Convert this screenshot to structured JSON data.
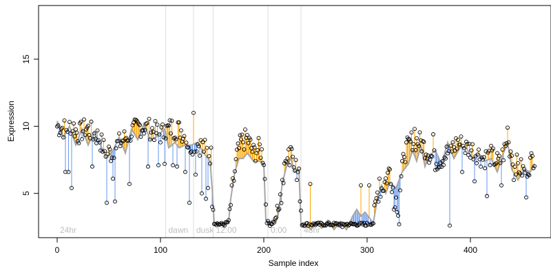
{
  "chart_data": {
    "type": "scatter",
    "title": "",
    "xlabel": "Sample index",
    "ylabel": "Expression",
    "xlim": [
      -18,
      478
    ],
    "ylim": [
      1.7,
      19.0
    ],
    "x_ticks": [
      0,
      100,
      200,
      300,
      400
    ],
    "y_ticks": [
      5,
      10,
      15
    ],
    "grid": false,
    "colors": {
      "observed_points": "#000000",
      "fitted_curve": "#a6a6a6",
      "residual_above": "#ffa500",
      "residual_below": "#6495ed",
      "segment_line": "#dcdcdc",
      "segment_label": "#bebebe",
      "axis": "#000000"
    },
    "segments": [
      {
        "label": "24hr",
        "x": 0
      },
      {
        "label": "dawn",
        "x": 105
      },
      {
        "label": "dusk",
        "x": 132
      },
      {
        "label": "12:00",
        "x": 151
      },
      {
        "label": "0:00",
        "x": 204
      },
      {
        "label": "48hr",
        "x": 236
      }
    ],
    "observed_anchors": [
      [
        0,
        10.0
      ],
      [
        8,
        9.8
      ],
      [
        14,
        10.2
      ],
      [
        20,
        9.4
      ],
      [
        28,
        9.9
      ],
      [
        34,
        9.5
      ],
      [
        40,
        9.2
      ],
      [
        46,
        8.2
      ],
      [
        52,
        8.0
      ],
      [
        58,
        8.6
      ],
      [
        64,
        9.0
      ],
      [
        72,
        9.6
      ],
      [
        80,
        10.0
      ],
      [
        90,
        9.8
      ],
      [
        100,
        9.4
      ],
      [
        110,
        9.9
      ],
      [
        120,
        9.7
      ],
      [
        128,
        8.6
      ],
      [
        134,
        8.8
      ],
      [
        140,
        8.5
      ],
      [
        146,
        8.1
      ],
      [
        149,
        7.8
      ],
      [
        152,
        2.8
      ],
      [
        157,
        2.7
      ],
      [
        162,
        2.7
      ],
      [
        166,
        2.9
      ],
      [
        170,
        5.5
      ],
      [
        174,
        7.8
      ],
      [
        178,
        8.8
      ],
      [
        184,
        9.1
      ],
      [
        190,
        8.0
      ],
      [
        196,
        8.4
      ],
      [
        200,
        7.6
      ],
      [
        203,
        2.9
      ],
      [
        206,
        2.7
      ],
      [
        210,
        2.9
      ],
      [
        214,
        3.6
      ],
      [
        218,
        5.2
      ],
      [
        222,
        8.0
      ],
      [
        226,
        8.6
      ],
      [
        230,
        7.4
      ],
      [
        234,
        6.2
      ],
      [
        237,
        2.7
      ],
      [
        245,
        2.7
      ],
      [
        260,
        2.7
      ],
      [
        280,
        2.7
      ],
      [
        300,
        2.7
      ],
      [
        306,
        2.8
      ],
      [
        310,
        5.0
      ],
      [
        316,
        5.6
      ],
      [
        322,
        6.8
      ],
      [
        326,
        5.0
      ],
      [
        330,
        4.0
      ],
      [
        336,
        8.0
      ],
      [
        344,
        9.0
      ],
      [
        352,
        8.8
      ],
      [
        360,
        8.0
      ],
      [
        366,
        7.4
      ],
      [
        372,
        7.6
      ],
      [
        380,
        8.2
      ],
      [
        388,
        8.8
      ],
      [
        396,
        8.4
      ],
      [
        404,
        8.2
      ],
      [
        412,
        7.6
      ],
      [
        420,
        7.8
      ],
      [
        428,
        7.2
      ],
      [
        436,
        8.8
      ],
      [
        444,
        7.2
      ],
      [
        452,
        6.6
      ],
      [
        456,
        7.0
      ],
      [
        462,
        7.8
      ]
    ],
    "fitted_anchors": [
      [
        0,
        10.4
      ],
      [
        6,
        9.2
      ],
      [
        12,
        10.0
      ],
      [
        18,
        8.6
      ],
      [
        24,
        9.8
      ],
      [
        30,
        8.6
      ],
      [
        36,
        9.6
      ],
      [
        42,
        8.6
      ],
      [
        48,
        7.6
      ],
      [
        54,
        8.2
      ],
      [
        60,
        9.2
      ],
      [
        66,
        8.0
      ],
      [
        72,
        9.8
      ],
      [
        78,
        9.0
      ],
      [
        84,
        10.2
      ],
      [
        90,
        9.0
      ],
      [
        96,
        9.2
      ],
      [
        104,
        9.8
      ],
      [
        108,
        8.4
      ],
      [
        114,
        8.8
      ],
      [
        118,
        8.4
      ],
      [
        124,
        8.6
      ],
      [
        130,
        8.6
      ],
      [
        136,
        8.8
      ],
      [
        142,
        8.0
      ],
      [
        148,
        7.4
      ],
      [
        150,
        5.4
      ],
      [
        152,
        2.8
      ],
      [
        162,
        2.8
      ],
      [
        166,
        2.9
      ],
      [
        168,
        4.6
      ],
      [
        172,
        6.6
      ],
      [
        176,
        7.6
      ],
      [
        180,
        7.6
      ],
      [
        184,
        8.0
      ],
      [
        190,
        7.4
      ],
      [
        196,
        7.4
      ],
      [
        200,
        7.2
      ],
      [
        202,
        3.0
      ],
      [
        206,
        2.9
      ],
      [
        212,
        2.9
      ],
      [
        214,
        3.4
      ],
      [
        218,
        5.8
      ],
      [
        222,
        7.0
      ],
      [
        226,
        7.6
      ],
      [
        230,
        6.6
      ],
      [
        234,
        6.8
      ],
      [
        236,
        2.7
      ],
      [
        240,
        2.7
      ],
      [
        246,
        2.3
      ],
      [
        250,
        2.9
      ],
      [
        256,
        2.4
      ],
      [
        262,
        3.0
      ],
      [
        268,
        2.3
      ],
      [
        274,
        2.9
      ],
      [
        280,
        2.3
      ],
      [
        286,
        3.3
      ],
      [
        290,
        3.8
      ],
      [
        294,
        3.3
      ],
      [
        298,
        3.6
      ],
      [
        302,
        3.2
      ],
      [
        306,
        2.8
      ],
      [
        310,
        4.6
      ],
      [
        314,
        5.6
      ],
      [
        318,
        5.0
      ],
      [
        322,
        5.8
      ],
      [
        328,
        5.4
      ],
      [
        334,
        6.6
      ],
      [
        340,
        7.2
      ],
      [
        344,
        8.2
      ],
      [
        348,
        7.4
      ],
      [
        352,
        8.6
      ],
      [
        356,
        7.0
      ],
      [
        360,
        7.8
      ],
      [
        366,
        8.2
      ],
      [
        372,
        7.2
      ],
      [
        378,
        8.8
      ],
      [
        384,
        7.6
      ],
      [
        390,
        8.4
      ],
      [
        396,
        8.4
      ],
      [
        402,
        7.6
      ],
      [
        408,
        8.0
      ],
      [
        414,
        7.4
      ],
      [
        420,
        7.6
      ],
      [
        426,
        6.6
      ],
      [
        432,
        8.0
      ],
      [
        436,
        8.8
      ],
      [
        440,
        6.8
      ],
      [
        446,
        6.0
      ],
      [
        452,
        6.8
      ],
      [
        458,
        6.6
      ],
      [
        462,
        7.2
      ]
    ],
    "low_outliers": [
      [
        8,
        6.6
      ],
      [
        11,
        6.6
      ],
      [
        14,
        5.4
      ],
      [
        34,
        7.0
      ],
      [
        48,
        4.3
      ],
      [
        54,
        6.1
      ],
      [
        56,
        4.4
      ],
      [
        70,
        5.7
      ],
      [
        88,
        7.0
      ],
      [
        98,
        7.1
      ],
      [
        104,
        7.2
      ],
      [
        112,
        7.1
      ],
      [
        116,
        7.0
      ],
      [
        124,
        6.6
      ],
      [
        128,
        4.3
      ],
      [
        134,
        6.4
      ],
      [
        140,
        5.0
      ],
      [
        144,
        4.6
      ],
      [
        146,
        5.4
      ],
      [
        150,
        4.0
      ],
      [
        225,
        7.1
      ],
      [
        232,
        6.0
      ],
      [
        276,
        2.5
      ],
      [
        298,
        2.6
      ],
      [
        326,
        3.8
      ],
      [
        331,
        2.7
      ],
      [
        380,
        2.6
      ],
      [
        392,
        6.6
      ],
      [
        404,
        5.9
      ],
      [
        416,
        4.8
      ],
      [
        430,
        5.6
      ],
      [
        442,
        6.0
      ],
      [
        454,
        4.7
      ]
    ],
    "high_outliers": [
      [
        132,
        11.0
      ],
      [
        218,
        6.0
      ],
      [
        245,
        5.7
      ],
      [
        294,
        5.6
      ],
      [
        302,
        5.6
      ],
      [
        312,
        6.1
      ],
      [
        336,
        7.7
      ],
      [
        346,
        9.8
      ],
      [
        364,
        9.4
      ],
      [
        436,
        9.9
      ]
    ]
  }
}
